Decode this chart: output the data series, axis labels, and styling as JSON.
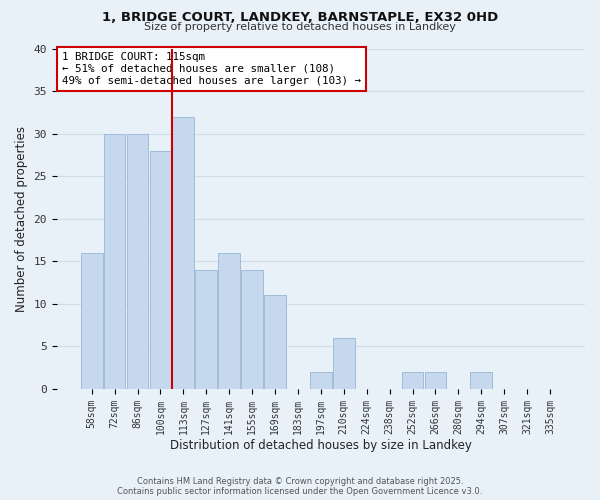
{
  "title": "1, BRIDGE COURT, LANDKEY, BARNSTAPLE, EX32 0HD",
  "subtitle": "Size of property relative to detached houses in Landkey",
  "xlabel": "Distribution of detached houses by size in Landkey",
  "ylabel": "Number of detached properties",
  "bar_labels": [
    "58sqm",
    "72sqm",
    "86sqm",
    "100sqm",
    "113sqm",
    "127sqm",
    "141sqm",
    "155sqm",
    "169sqm",
    "183sqm",
    "197sqm",
    "210sqm",
    "224sqm",
    "238sqm",
    "252sqm",
    "266sqm",
    "280sqm",
    "294sqm",
    "307sqm",
    "321sqm",
    "335sqm"
  ],
  "bar_values": [
    16,
    30,
    30,
    28,
    32,
    14,
    16,
    14,
    11,
    0,
    2,
    6,
    0,
    0,
    2,
    2,
    0,
    2,
    0,
    0,
    0
  ],
  "bar_color": "#c5d8ed",
  "bar_edge_color": "#a0bcd8",
  "vline_index": 4,
  "vline_color": "#cc0000",
  "annotation_title": "1 BRIDGE COURT: 115sqm",
  "annotation_line1": "← 51% of detached houses are smaller (108)",
  "annotation_line2": "49% of semi-detached houses are larger (103) →",
  "annotation_box_color": "#ffffff",
  "annotation_box_edge": "#cc0000",
  "ylim": [
    0,
    40
  ],
  "yticks": [
    0,
    5,
    10,
    15,
    20,
    25,
    30,
    35,
    40
  ],
  "grid_color": "#d0dce8",
  "bg_color": "#e8f0f8",
  "footnote1": "Contains HM Land Registry data © Crown copyright and database right 2025.",
  "footnote2": "Contains public sector information licensed under the Open Government Licence v3.0."
}
